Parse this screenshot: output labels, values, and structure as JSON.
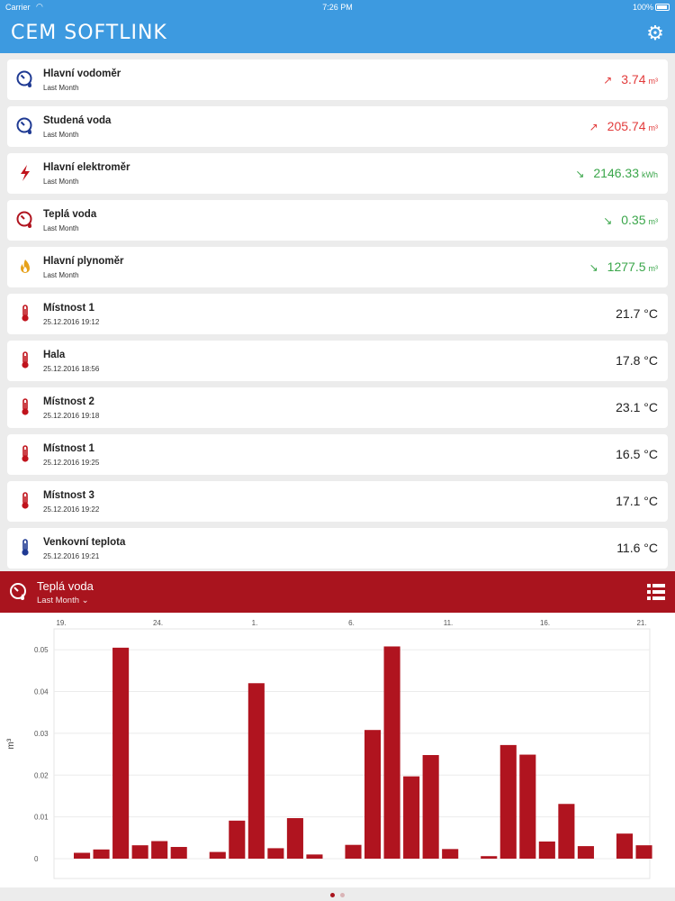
{
  "status_bar": {
    "carrier": "Carrier",
    "time": "7:26 PM",
    "battery": "100%"
  },
  "app": {
    "title": "CEM SOFTLINK",
    "settings_icon": "gear-icon"
  },
  "accent_colors": {
    "nav": "#3d9ae0",
    "panel": "#a9141e",
    "bar": "#b0141f",
    "up": "#e23b3b",
    "down": "#3aa64a"
  },
  "meters": [
    {
      "name": "Hlavní vodoměr",
      "sub": "Last Month",
      "value": "3.74",
      "unit": "m³",
      "trend": "up",
      "icon": "water-meter-icon"
    },
    {
      "name": "Studená voda",
      "sub": "Last Month",
      "value": "205.74",
      "unit": "m³",
      "trend": "up",
      "icon": "water-meter-icon"
    },
    {
      "name": "Hlavní elektroměr",
      "sub": "Last Month",
      "value": "2146.33",
      "unit": "kWh",
      "trend": "down",
      "icon": "lightning-icon"
    },
    {
      "name": "Teplá voda",
      "sub": "Last Month",
      "value": "0.35",
      "unit": "m³",
      "trend": "down",
      "icon": "hot-water-meter-icon"
    },
    {
      "name": "Hlavní plynoměr",
      "sub": "Last Month",
      "value": "1277.5",
      "unit": "m³",
      "trend": "down",
      "icon": "gas-flame-icon"
    },
    {
      "name": "Místnost 1",
      "sub": "25.12.2016 19:12",
      "value": "21.7 °C",
      "unit": "",
      "trend": "none",
      "icon": "thermometer-icon"
    },
    {
      "name": "Hala",
      "sub": "25.12.2016 18:56",
      "value": "17.8 °C",
      "unit": "",
      "trend": "none",
      "icon": "thermometer-icon"
    },
    {
      "name": "Místnost 2",
      "sub": "25.12.2016 19:18",
      "value": "23.1 °C",
      "unit": "",
      "trend": "none",
      "icon": "thermometer-icon"
    },
    {
      "name": "Místnost 1",
      "sub": "25.12.2016 19:25",
      "value": "16.5 °C",
      "unit": "",
      "trend": "none",
      "icon": "thermometer-icon"
    },
    {
      "name": "Místnost 3",
      "sub": "25.12.2016 19:22",
      "value": "17.1 °C",
      "unit": "",
      "trend": "none",
      "icon": "thermometer-icon"
    },
    {
      "name": "Venkovní teplota",
      "sub": "25.12.2016 19:21",
      "value": "11.6 °C",
      "unit": "",
      "trend": "none",
      "icon": "thermometer-blue-icon"
    }
  ],
  "detail_panel": {
    "title": "Teplá voda",
    "period": "Last Month ⌄",
    "icon": "hot-water-meter-icon",
    "menu_icon": "list-view-icon"
  },
  "chart_data": {
    "type": "bar",
    "title": "",
    "ylabel": "m³",
    "ylim": [
      0,
      0.055
    ],
    "yticks": [
      0,
      0.01,
      0.02,
      0.03,
      0.04,
      0.05
    ],
    "xticks": [
      "19.",
      "24.",
      "1.",
      "6.",
      "11.",
      "16.",
      "21."
    ],
    "grid": true,
    "values": [
      0.0014,
      0.0022,
      0.0505,
      0.0032,
      0.0042,
      0.0028,
      0,
      0.0016,
      0.0091,
      0.042,
      0.0025,
      0.0097,
      0.001,
      0,
      0.0033,
      0.0308,
      0.0508,
      0.0197,
      0.0248,
      0.0023,
      0,
      0.0006,
      0.0272,
      0.0249,
      0.0041,
      0.0131,
      0.003,
      0,
      0.006,
      0.0032
    ]
  },
  "pager": {
    "pages": 2,
    "current": 1
  }
}
